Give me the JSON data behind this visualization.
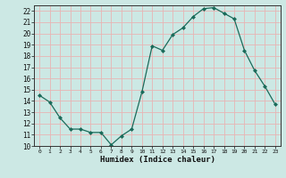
{
  "x": [
    0,
    1,
    2,
    3,
    4,
    5,
    6,
    7,
    8,
    9,
    10,
    11,
    12,
    13,
    14,
    15,
    16,
    17,
    18,
    19,
    20,
    21,
    22,
    23
  ],
  "y": [
    14.5,
    13.9,
    12.5,
    11.5,
    11.5,
    11.2,
    11.2,
    10.1,
    10.9,
    11.5,
    14.8,
    18.9,
    18.5,
    19.9,
    20.5,
    21.5,
    22.2,
    22.3,
    21.8,
    21.3,
    18.5,
    16.7,
    15.3,
    13.7
  ],
  "xlabel": "Humidex (Indice chaleur)",
  "ylim": [
    10,
    22.5
  ],
  "xlim": [
    -0.5,
    23.5
  ],
  "yticks": [
    10,
    11,
    12,
    13,
    14,
    15,
    16,
    17,
    18,
    19,
    20,
    21,
    22
  ],
  "xticks": [
    0,
    1,
    2,
    3,
    4,
    5,
    6,
    7,
    8,
    9,
    10,
    11,
    12,
    13,
    14,
    15,
    16,
    17,
    18,
    19,
    20,
    21,
    22,
    23
  ],
  "line_color": "#1a6b5a",
  "marker_color": "#1a6b5a",
  "bg_color": "#cce8e4",
  "grid_color": "#e8b4b4",
  "spine_color": "#888888"
}
